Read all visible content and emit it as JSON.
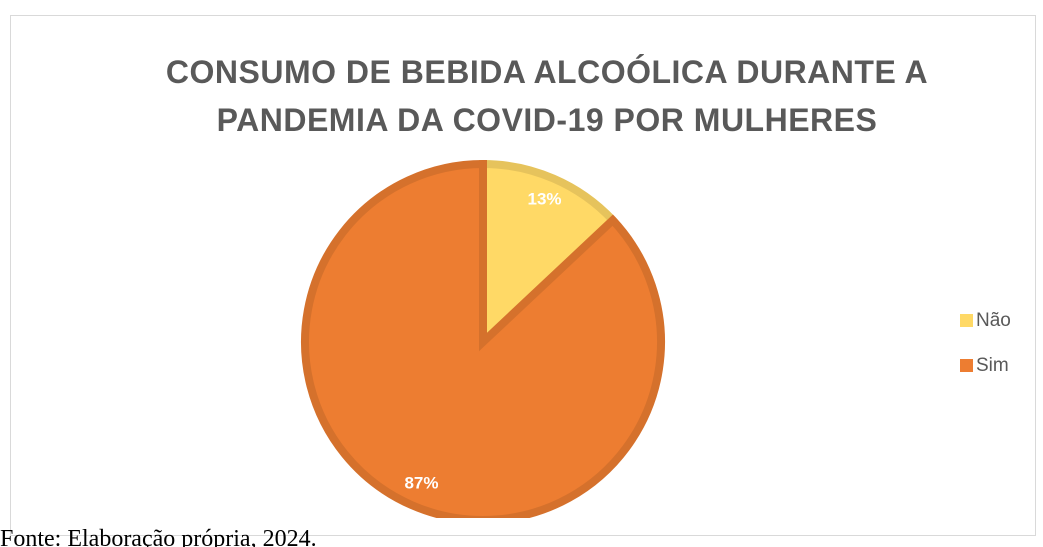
{
  "chart_data": {
    "type": "pie",
    "title": "CONSUMO DE BEBIDA ALCOÓLICA DURANTE A PANDEMIA DA COVID-19 POR MULHERES",
    "categories": [
      "Não",
      "Sim"
    ],
    "values": [
      13,
      87
    ],
    "value_labels": [
      "13%",
      "87%"
    ],
    "colors": [
      "#ffd966",
      "#ed7d31"
    ],
    "legend": "right"
  },
  "caption": "Fonte: Elaboração própria, 2024."
}
